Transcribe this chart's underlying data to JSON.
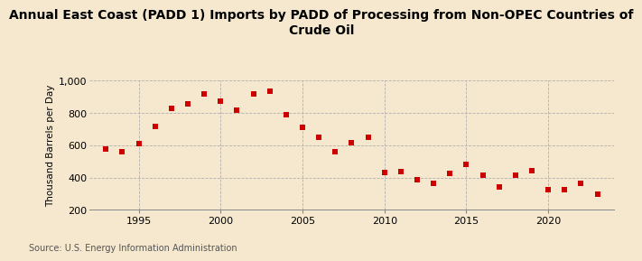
{
  "title": "Annual East Coast (PADD 1) Imports by PADD of Processing from Non-OPEC Countries of\nCrude Oil",
  "ylabel": "Thousand Barrels per Day",
  "source": "Source: U.S. Energy Information Administration",
  "background_color": "#f5e8ce",
  "marker_color": "#cc0000",
  "years": [
    1993,
    1994,
    1995,
    1996,
    1997,
    1998,
    1999,
    2000,
    2001,
    2002,
    2003,
    2004,
    2005,
    2006,
    2007,
    2008,
    2009,
    2010,
    2011,
    2012,
    2013,
    2014,
    2015,
    2016,
    2017,
    2018,
    2019,
    2020,
    2021,
    2022,
    2023
  ],
  "values": [
    578,
    560,
    608,
    718,
    828,
    855,
    920,
    875,
    815,
    915,
    935,
    790,
    710,
    648,
    558,
    615,
    650,
    430,
    435,
    388,
    363,
    425,
    480,
    415,
    340,
    415,
    440,
    325,
    323,
    365,
    298
  ],
  "ylim": [
    200,
    1000
  ],
  "ytick_values": [
    200,
    400,
    600,
    800,
    1000
  ],
  "xlim": [
    1992.0,
    2024.0
  ],
  "xticks": [
    1995,
    2000,
    2005,
    2010,
    2015,
    2020
  ],
  "title_fontsize": 10,
  "ylabel_fontsize": 7.5,
  "tick_fontsize": 8,
  "source_fontsize": 7
}
